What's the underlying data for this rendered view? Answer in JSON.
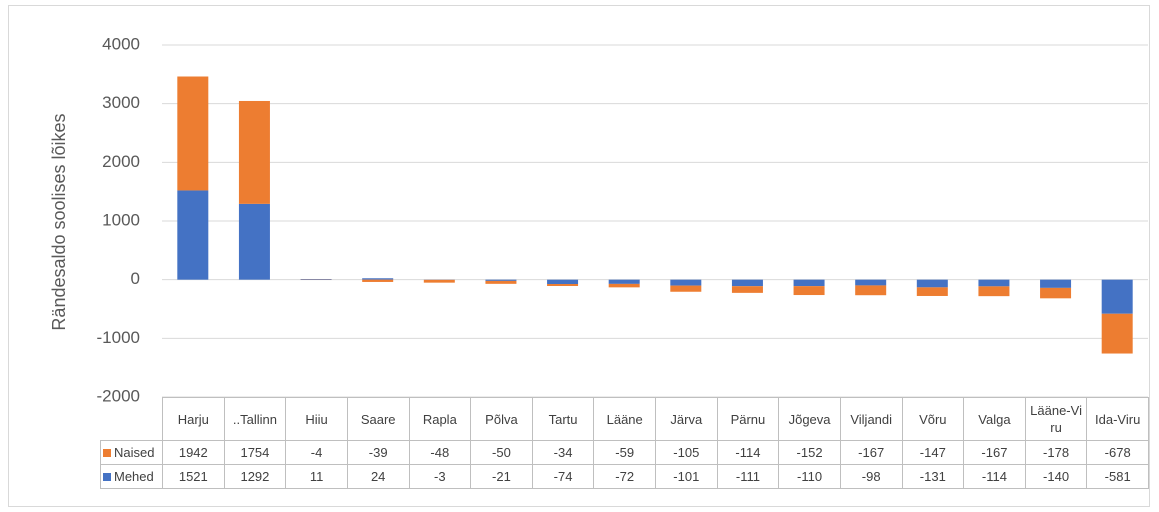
{
  "chart_data": {
    "type": "bar",
    "stacked": true,
    "y_label": "Rändesaldo soolises lõikes",
    "categories": [
      "Harju",
      "..Tallinn",
      "Hiiu",
      "Saare",
      "Rapla",
      "Põlva",
      "Tartu",
      "Lääne",
      "Järva",
      "Pärnu",
      "Jõgeva",
      "Viljandi",
      "Võru",
      "Valga",
      "Lääne-Viru",
      "Ida-Viru"
    ],
    "series": [
      {
        "name": "Mehed",
        "color": "#4472c4",
        "values": [
          1521,
          1292,
          11,
          24,
          -3,
          -21,
          -74,
          -72,
          -101,
          -111,
          -110,
          -98,
          -131,
          -114,
          -140,
          -581
        ]
      },
      {
        "name": "Naised",
        "color": "#ed7d31",
        "values": [
          1942,
          1754,
          -4,
          -39,
          -48,
          -50,
          -34,
          -59,
          -105,
          -114,
          -152,
          -167,
          -147,
          -167,
          -178,
          -678
        ]
      }
    ],
    "ylim": [
      -2000,
      4000
    ],
    "yticks": [
      -2000,
      -1000,
      0,
      1000,
      2000,
      3000,
      4000
    ],
    "grid": true,
    "data_table": true
  }
}
